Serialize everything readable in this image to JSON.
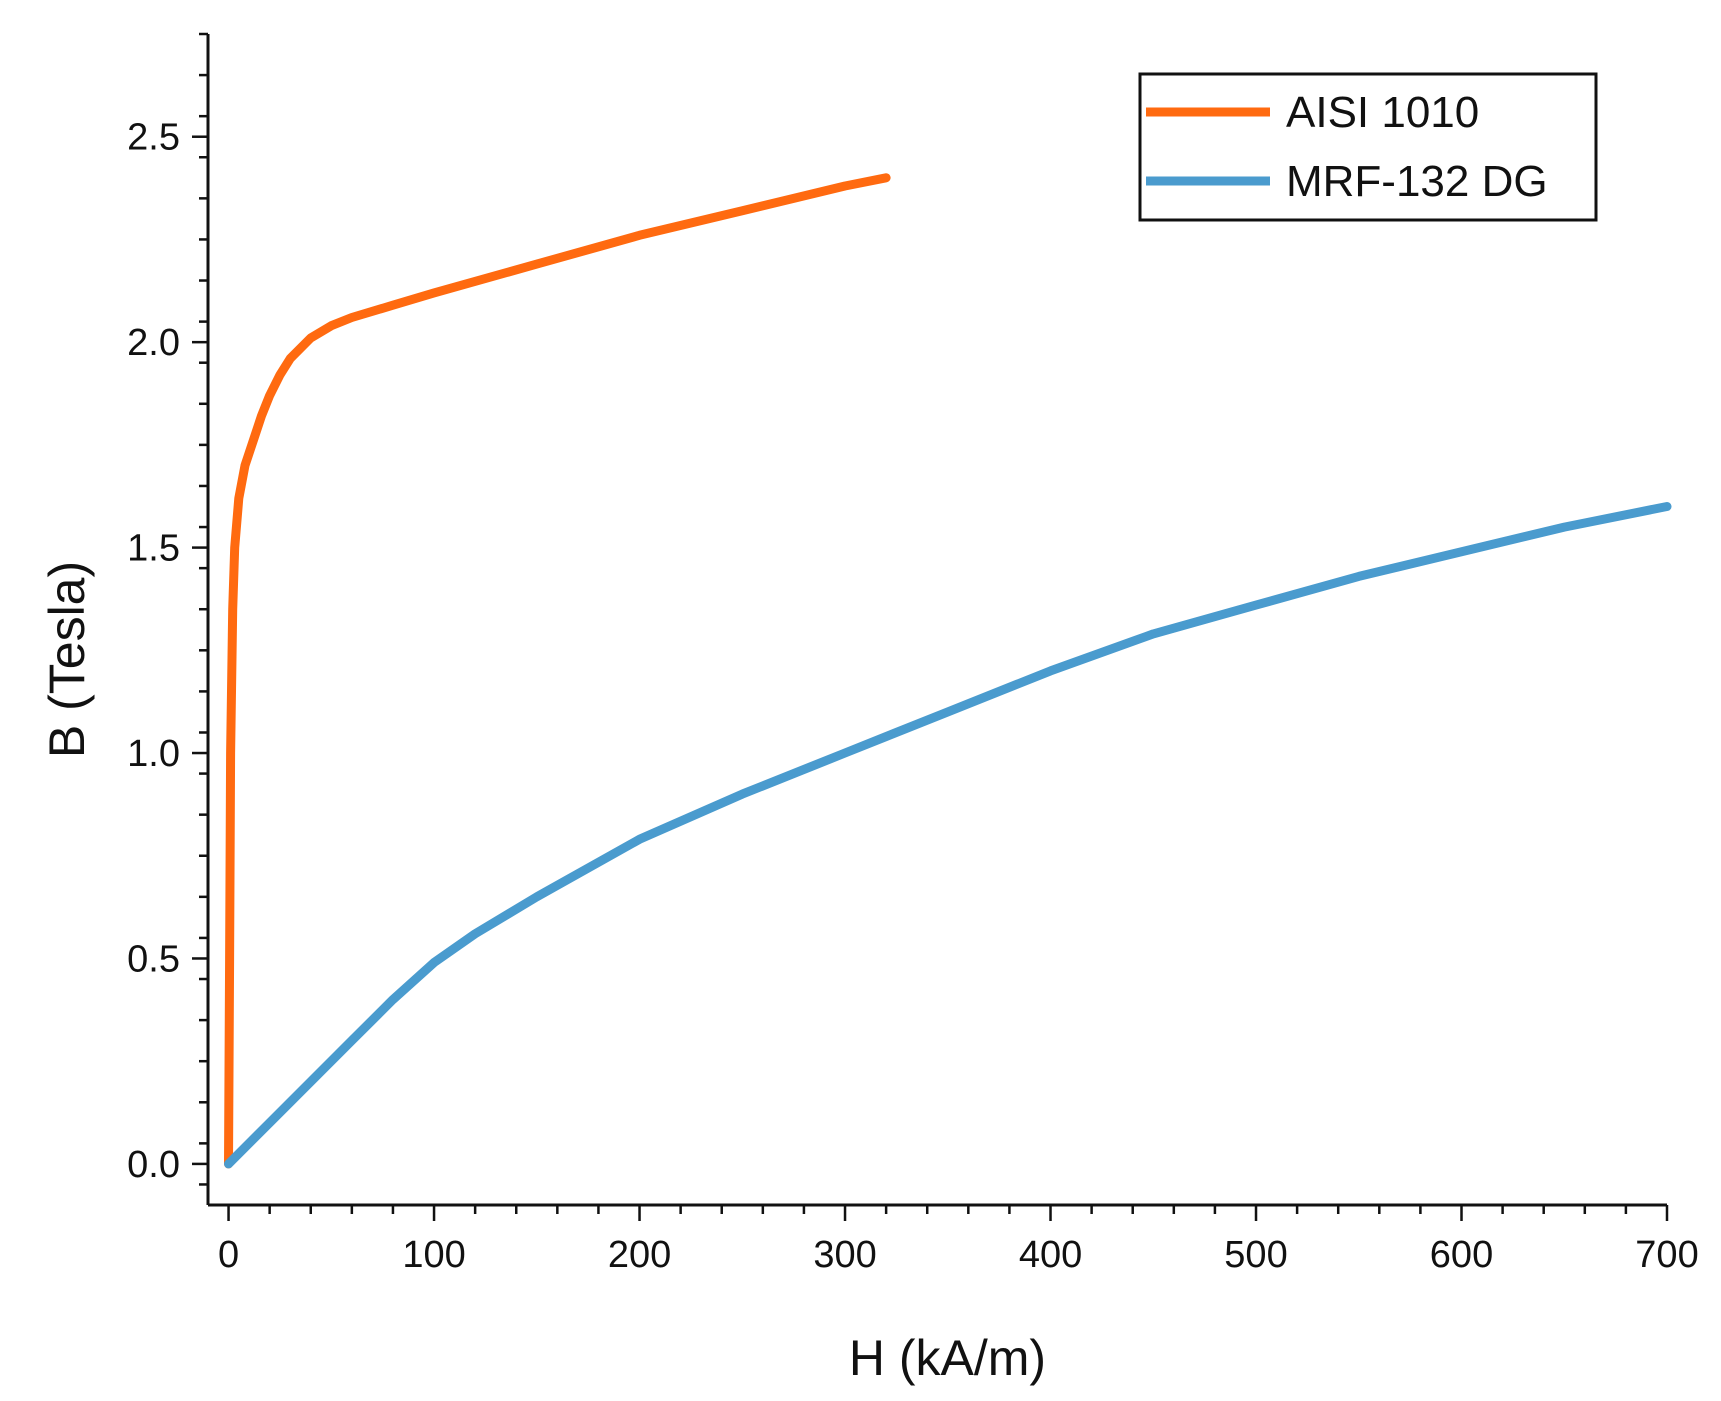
{
  "chart_data": {
    "type": "line",
    "title": "",
    "xlabel": "H (kA/m)",
    "ylabel": "B (Tesla)",
    "xlim": [
      -10,
      700
    ],
    "ylim": [
      -0.1,
      2.75
    ],
    "x_ticks": [
      0,
      100,
      200,
      300,
      400,
      500,
      600,
      700
    ],
    "x_tick_labels": [
      "0",
      "100",
      "200",
      "300",
      "400",
      "500",
      "600",
      "700"
    ],
    "y_ticks": [
      0.0,
      0.5,
      1.0,
      1.5,
      2.0,
      2.5
    ],
    "y_tick_labels": [
      "0.0",
      "0.5",
      "1.0",
      "1.5",
      "2.0",
      "2.5"
    ],
    "grid": false,
    "legend_position": "top-right",
    "series": [
      {
        "name": "AISI 1010",
        "color": "#ff6a10",
        "x": [
          0,
          0.5,
          1,
          2,
          3,
          5,
          8,
          12,
          16,
          20,
          25,
          30,
          40,
          50,
          60,
          80,
          100,
          150,
          200,
          250,
          300,
          320
        ],
        "y": [
          0,
          0.5,
          1.0,
          1.35,
          1.5,
          1.62,
          1.7,
          1.76,
          1.82,
          1.87,
          1.92,
          1.96,
          2.01,
          2.04,
          2.06,
          2.09,
          2.12,
          2.19,
          2.26,
          2.32,
          2.38,
          2.4
        ]
      },
      {
        "name": "MRF-132 DG",
        "color": "#4a9bce",
        "x": [
          0,
          20,
          40,
          60,
          80,
          100,
          120,
          150,
          200,
          250,
          300,
          350,
          400,
          450,
          500,
          550,
          600,
          650,
          700
        ],
        "y": [
          0,
          0.1,
          0.2,
          0.3,
          0.4,
          0.49,
          0.56,
          0.65,
          0.79,
          0.9,
          1.0,
          1.1,
          1.2,
          1.29,
          1.36,
          1.43,
          1.49,
          1.55,
          1.6
        ]
      }
    ]
  }
}
